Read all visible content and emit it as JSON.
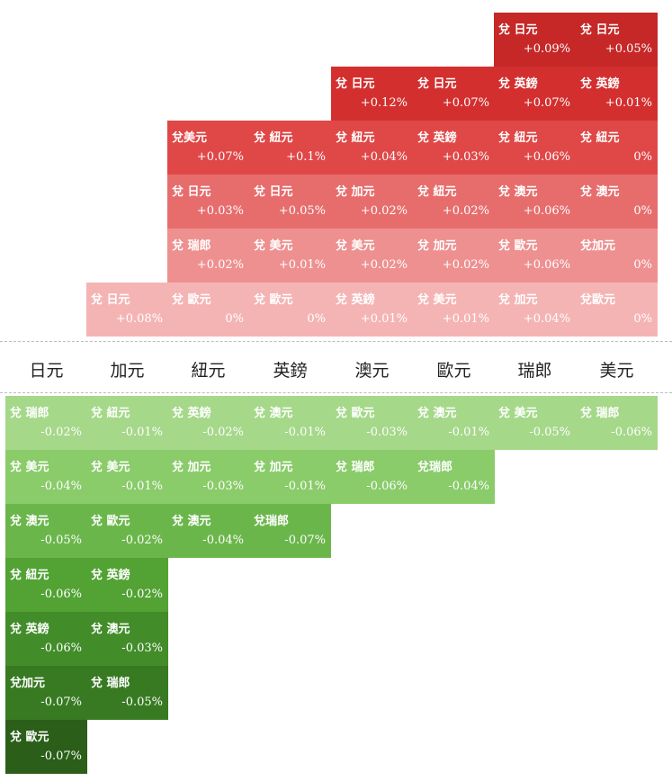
{
  "currencies": [
    "日元",
    "加元",
    "紐元",
    "英鎊",
    "澳元",
    "歐元",
    "瑞郎",
    "美元"
  ],
  "up_rows": [
    {
      "start": 6,
      "cells": [
        {
          "pair": "兌 日元",
          "pct": "+0.09%",
          "color": "#c62828"
        },
        {
          "pair": "兌 日元",
          "pct": "+0.05%",
          "color": "#c62828"
        }
      ]
    },
    {
      "start": 4,
      "cells": [
        {
          "pair": "兌 日元",
          "pct": "+0.12%",
          "color": "#d32f2f"
        },
        {
          "pair": "兌 日元",
          "pct": "+0.07%",
          "color": "#d32f2f"
        },
        {
          "pair": "兌 英鎊",
          "pct": "+0.07%",
          "color": "#d32f2f"
        },
        {
          "pair": "兌 英鎊",
          "pct": "+0.01%",
          "color": "#d32f2f"
        }
      ]
    },
    {
      "start": 2,
      "cells": [
        {
          "pair": "兌美元",
          "pct": "+0.07%",
          "color": "#e04848"
        },
        {
          "pair": "兌 紐元",
          "pct": "+0.1%",
          "color": "#e04848"
        },
        {
          "pair": "兌 紐元",
          "pct": "+0.04%",
          "color": "#e04848"
        },
        {
          "pair": "兌 英鎊",
          "pct": "+0.03%",
          "color": "#e04848"
        },
        {
          "pair": "兌 紐元",
          "pct": "+0.06%",
          "color": "#e04848"
        },
        {
          "pair": "兌 紐元",
          "pct": "0%",
          "color": "#e04848"
        }
      ]
    },
    {
      "start": 2,
      "cells": [
        {
          "pair": "兌 日元",
          "pct": "+0.03%",
          "color": "#e76d6d"
        },
        {
          "pair": "兌 日元",
          "pct": "+0.05%",
          "color": "#e76d6d"
        },
        {
          "pair": "兌 加元",
          "pct": "+0.02%",
          "color": "#e76d6d"
        },
        {
          "pair": "兌 紐元",
          "pct": "+0.02%",
          "color": "#e76d6d"
        },
        {
          "pair": "兌 澳元",
          "pct": "+0.06%",
          "color": "#e76d6d"
        },
        {
          "pair": "兌 澳元",
          "pct": "0%",
          "color": "#e76d6d"
        }
      ]
    },
    {
      "start": 2,
      "cells": [
        {
          "pair": "兌 瑞郎",
          "pct": "+0.02%",
          "color": "#ee9090"
        },
        {
          "pair": "兌 美元",
          "pct": "+0.01%",
          "color": "#ee9090"
        },
        {
          "pair": "兌 美元",
          "pct": "+0.02%",
          "color": "#ee9090"
        },
        {
          "pair": "兌 加元",
          "pct": "+0.02%",
          "color": "#ee9090"
        },
        {
          "pair": "兌 歐元",
          "pct": "+0.06%",
          "color": "#ee9090"
        },
        {
          "pair": "兌加元",
          "pct": "0%",
          "color": "#ee9090"
        }
      ]
    },
    {
      "start": 1,
      "cells": [
        {
          "pair": "兌 日元",
          "pct": "+0.08%",
          "color": "#f5b4b4"
        },
        {
          "pair": "兌 歐元",
          "pct": "0%",
          "color": "#f5b4b4"
        },
        {
          "pair": "兌 歐元",
          "pct": "0%",
          "color": "#f5b4b4"
        },
        {
          "pair": "兌 英鎊",
          "pct": "+0.01%",
          "color": "#f5b4b4"
        },
        {
          "pair": "兌 美元",
          "pct": "+0.01%",
          "color": "#f5b4b4"
        },
        {
          "pair": "兌 加元",
          "pct": "+0.04%",
          "color": "#f5b4b4"
        },
        {
          "pair": "兌歐元",
          "pct": "0%",
          "color": "#f5b4b4"
        }
      ]
    }
  ],
  "down_rows": [
    {
      "start": 0,
      "cells": [
        {
          "pair": "兌 瑞郎",
          "pct": "-0.02%",
          "color": "#a5d889"
        },
        {
          "pair": "兌 紐元",
          "pct": "-0.01%",
          "color": "#a5d889"
        },
        {
          "pair": "兌 英鎊",
          "pct": "-0.02%",
          "color": "#a5d889"
        },
        {
          "pair": "兌 澳元",
          "pct": "-0.01%",
          "color": "#a5d889"
        },
        {
          "pair": "兌 歐元",
          "pct": "-0.03%",
          "color": "#a5d889"
        },
        {
          "pair": "兌 澳元",
          "pct": "-0.01%",
          "color": "#a5d889"
        },
        {
          "pair": "兌 美元",
          "pct": "-0.05%",
          "color": "#a5d889"
        },
        {
          "pair": "兌 瑞郎",
          "pct": "-0.06%",
          "color": "#a5d889"
        }
      ]
    },
    {
      "start": 0,
      "cells": [
        {
          "pair": "兌 美元",
          "pct": "-0.04%",
          "color": "#8acb6a"
        },
        {
          "pair": "兌 美元",
          "pct": "-0.01%",
          "color": "#8acb6a"
        },
        {
          "pair": "兌 加元",
          "pct": "-0.03%",
          "color": "#8acb6a"
        },
        {
          "pair": "兌 加元",
          "pct": "-0.01%",
          "color": "#8acb6a"
        },
        {
          "pair": "兌 瑞郎",
          "pct": "-0.06%",
          "color": "#8acb6a"
        },
        {
          "pair": "兌瑞郎",
          "pct": "-0.04%",
          "color": "#8acb6a"
        }
      ]
    },
    {
      "start": 0,
      "cells": [
        {
          "pair": "兌 澳元",
          "pct": "-0.05%",
          "color": "#6bb64b"
        },
        {
          "pair": "兌 歐元",
          "pct": "-0.02%",
          "color": "#6bb64b"
        },
        {
          "pair": "兌 澳元",
          "pct": "-0.04%",
          "color": "#6bb64b"
        },
        {
          "pair": "兌瑞郎",
          "pct": "-0.07%",
          "color": "#6bb64b"
        }
      ]
    },
    {
      "start": 0,
      "cells": [
        {
          "pair": "兌 紐元",
          "pct": "-0.06%",
          "color": "#52a234"
        },
        {
          "pair": "兌 英鎊",
          "pct": "-0.02%",
          "color": "#52a234"
        }
      ]
    },
    {
      "start": 0,
      "cells": [
        {
          "pair": "兌 英鎊",
          "pct": "-0.06%",
          "color": "#428c2a"
        },
        {
          "pair": "兌 澳元",
          "pct": "-0.03%",
          "color": "#428c2a"
        }
      ]
    },
    {
      "start": 0,
      "cells": [
        {
          "pair": "兌加元",
          "pct": "-0.07%",
          "color": "#387a22"
        },
        {
          "pair": "兌 瑞郎",
          "pct": "-0.05%",
          "color": "#387a22"
        }
      ]
    },
    {
      "start": 0,
      "cells": [
        {
          "pair": "兌 歐元",
          "pct": "-0.07%",
          "color": "#2a5e19"
        }
      ]
    }
  ]
}
